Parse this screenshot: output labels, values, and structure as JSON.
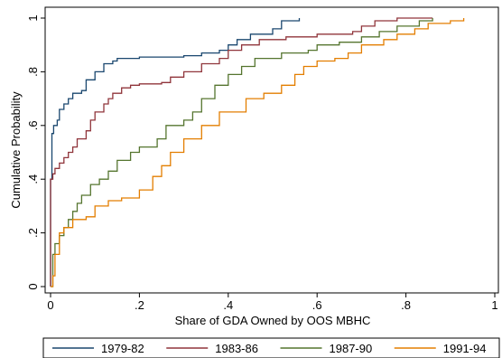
{
  "chart_data": {
    "type": "line",
    "title": "",
    "xlabel": "Share of GDA Owned by OOS MBHC",
    "ylabel": "Cumulative Probability",
    "xlim": [
      0,
      1
    ],
    "ylim": [
      0,
      1
    ],
    "x_ticks": [
      0,
      0.2,
      0.4,
      0.6,
      0.8,
      1
    ],
    "x_tick_labels": [
      "0",
      ".2",
      ".4",
      ".6",
      ".8",
      "1"
    ],
    "y_ticks": [
      0,
      0.2,
      0.4,
      0.6,
      0.8,
      1
    ],
    "y_tick_labels": [
      "0",
      ".2",
      ".4",
      ".6",
      ".8",
      "1"
    ],
    "grid": false,
    "legend_position": "bottom",
    "series": [
      {
        "name": "1979-82",
        "color": "#1a476f",
        "points": [
          [
            0,
            0
          ],
          [
            0,
            0.4
          ],
          [
            0.003,
            0.57
          ],
          [
            0.007,
            0.6
          ],
          [
            0.015,
            0.62
          ],
          [
            0.02,
            0.66
          ],
          [
            0.03,
            0.68
          ],
          [
            0.04,
            0.7
          ],
          [
            0.05,
            0.72
          ],
          [
            0.07,
            0.73
          ],
          [
            0.08,
            0.77
          ],
          [
            0.1,
            0.8
          ],
          [
            0.12,
            0.83
          ],
          [
            0.14,
            0.84
          ],
          [
            0.15,
            0.85
          ],
          [
            0.2,
            0.855
          ],
          [
            0.3,
            0.86
          ],
          [
            0.34,
            0.87
          ],
          [
            0.38,
            0.88
          ],
          [
            0.4,
            0.9
          ],
          [
            0.42,
            0.92
          ],
          [
            0.45,
            0.94
          ],
          [
            0.5,
            0.96
          ],
          [
            0.52,
            0.99
          ],
          [
            0.56,
            1
          ]
        ]
      },
      {
        "name": "1983-86",
        "color": "#90353b",
        "points": [
          [
            0,
            0
          ],
          [
            0,
            0.4
          ],
          [
            0.005,
            0.42
          ],
          [
            0.01,
            0.44
          ],
          [
            0.02,
            0.46
          ],
          [
            0.03,
            0.48
          ],
          [
            0.04,
            0.5
          ],
          [
            0.05,
            0.52
          ],
          [
            0.06,
            0.55
          ],
          [
            0.08,
            0.58
          ],
          [
            0.09,
            0.62
          ],
          [
            0.1,
            0.65
          ],
          [
            0.12,
            0.68
          ],
          [
            0.13,
            0.7
          ],
          [
            0.14,
            0.72
          ],
          [
            0.16,
            0.74
          ],
          [
            0.18,
            0.75
          ],
          [
            0.2,
            0.755
          ],
          [
            0.25,
            0.76
          ],
          [
            0.27,
            0.78
          ],
          [
            0.3,
            0.8
          ],
          [
            0.34,
            0.83
          ],
          [
            0.38,
            0.85
          ],
          [
            0.4,
            0.88
          ],
          [
            0.43,
            0.9
          ],
          [
            0.47,
            0.92
          ],
          [
            0.53,
            0.93
          ],
          [
            0.6,
            0.94
          ],
          [
            0.68,
            0.95
          ],
          [
            0.7,
            0.97
          ],
          [
            0.73,
            0.99
          ],
          [
            0.78,
            1
          ],
          [
            0.86,
            1
          ]
        ]
      },
      {
        "name": "1987-90",
        "color": "#55752f",
        "points": [
          [
            0,
            0
          ],
          [
            0.005,
            0.12
          ],
          [
            0.01,
            0.16
          ],
          [
            0.02,
            0.19
          ],
          [
            0.03,
            0.22
          ],
          [
            0.04,
            0.25
          ],
          [
            0.05,
            0.28
          ],
          [
            0.06,
            0.31
          ],
          [
            0.07,
            0.34
          ],
          [
            0.09,
            0.38
          ],
          [
            0.11,
            0.4
          ],
          [
            0.13,
            0.43
          ],
          [
            0.15,
            0.47
          ],
          [
            0.18,
            0.5
          ],
          [
            0.2,
            0.52
          ],
          [
            0.24,
            0.55
          ],
          [
            0.26,
            0.6
          ],
          [
            0.3,
            0.62
          ],
          [
            0.32,
            0.65
          ],
          [
            0.34,
            0.7
          ],
          [
            0.37,
            0.75
          ],
          [
            0.4,
            0.79
          ],
          [
            0.43,
            0.82
          ],
          [
            0.46,
            0.85
          ],
          [
            0.52,
            0.87
          ],
          [
            0.58,
            0.88
          ],
          [
            0.6,
            0.9
          ],
          [
            0.65,
            0.91
          ],
          [
            0.7,
            0.93
          ],
          [
            0.74,
            0.95
          ],
          [
            0.78,
            0.97
          ],
          [
            0.83,
            0.99
          ],
          [
            0.86,
            1
          ]
        ]
      },
      {
        "name": "1991-94",
        "color": "#e37e00",
        "points": [
          [
            0,
            0
          ],
          [
            0.005,
            0.04
          ],
          [
            0.01,
            0.12
          ],
          [
            0.02,
            0.2
          ],
          [
            0.03,
            0.22
          ],
          [
            0.05,
            0.25
          ],
          [
            0.08,
            0.26
          ],
          [
            0.1,
            0.3
          ],
          [
            0.13,
            0.32
          ],
          [
            0.16,
            0.33
          ],
          [
            0.2,
            0.36
          ],
          [
            0.23,
            0.41
          ],
          [
            0.25,
            0.45
          ],
          [
            0.27,
            0.5
          ],
          [
            0.3,
            0.55
          ],
          [
            0.34,
            0.6
          ],
          [
            0.38,
            0.65
          ],
          [
            0.44,
            0.7
          ],
          [
            0.48,
            0.72
          ],
          [
            0.52,
            0.75
          ],
          [
            0.55,
            0.79
          ],
          [
            0.57,
            0.82
          ],
          [
            0.6,
            0.84
          ],
          [
            0.64,
            0.85
          ],
          [
            0.67,
            0.87
          ],
          [
            0.7,
            0.9
          ],
          [
            0.75,
            0.92
          ],
          [
            0.78,
            0.94
          ],
          [
            0.82,
            0.96
          ],
          [
            0.85,
            0.98
          ],
          [
            0.9,
            0.99
          ],
          [
            0.93,
            1
          ]
        ]
      }
    ]
  }
}
